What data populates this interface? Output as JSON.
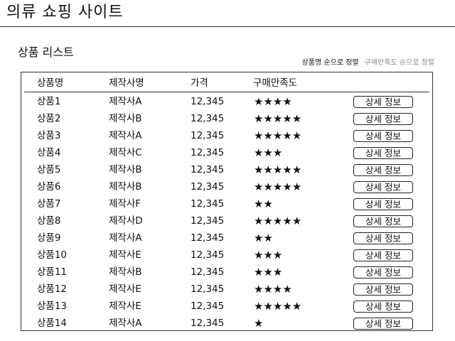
{
  "header": {
    "site_title": "의류 쇼핑 사이트"
  },
  "section": {
    "title": "상품 리스트"
  },
  "sort": {
    "by_name_label": "상품명 순으로 정렬",
    "by_rating_label": "구매만족도 순으로 정렬"
  },
  "table": {
    "columns": [
      "상품명",
      "제작사명",
      "가격",
      "구매만족도"
    ],
    "action_label": "상세 정보",
    "rows": [
      {
        "name": "상품1",
        "maker": "제작사A",
        "price": "12,345",
        "rating": 4
      },
      {
        "name": "상품2",
        "maker": "제작사B",
        "price": "12,345",
        "rating": 5
      },
      {
        "name": "상품3",
        "maker": "제작사A",
        "price": "12,345",
        "rating": 5
      },
      {
        "name": "상품4",
        "maker": "제작사C",
        "price": "12,345",
        "rating": 3
      },
      {
        "name": "상품5",
        "maker": "제작사B",
        "price": "12,345",
        "rating": 5
      },
      {
        "name": "상품6",
        "maker": "제작사B",
        "price": "12,345",
        "rating": 5
      },
      {
        "name": "상품7",
        "maker": "제작사F",
        "price": "12,345",
        "rating": 2
      },
      {
        "name": "상품8",
        "maker": "제작사D",
        "price": "12,345",
        "rating": 5
      },
      {
        "name": "상품9",
        "maker": "제작사A",
        "price": "12,345",
        "rating": 2
      },
      {
        "name": "상품10",
        "maker": "제작사E",
        "price": "12,345",
        "rating": 3
      },
      {
        "name": "상품11",
        "maker": "제작사B",
        "price": "12,345",
        "rating": 3
      },
      {
        "name": "상품12",
        "maker": "제작사E",
        "price": "12,345",
        "rating": 4
      },
      {
        "name": "상품13",
        "maker": "제작사E",
        "price": "12,345",
        "rating": 5
      },
      {
        "name": "상품14",
        "maker": "제작사A",
        "price": "12,345",
        "rating": 1
      }
    ]
  }
}
